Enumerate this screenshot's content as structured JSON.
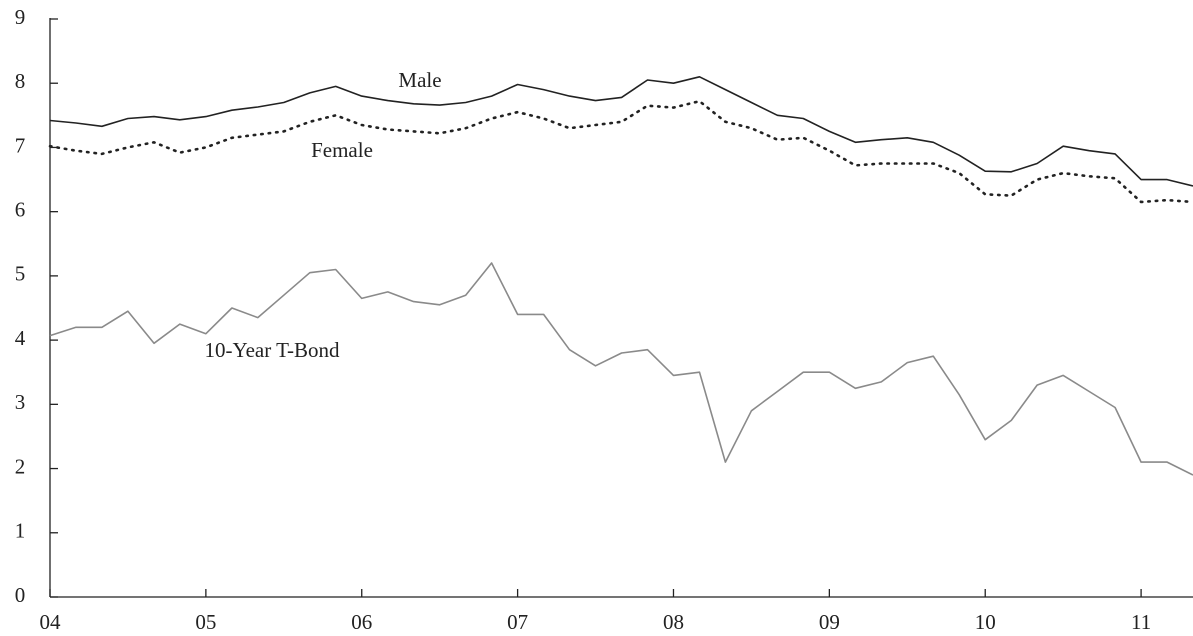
{
  "chart_data": {
    "type": "line",
    "x": [
      2004,
      2004.167,
      2004.333,
      2004.5,
      2004.667,
      2004.833,
      2005,
      2005.167,
      2005.333,
      2005.5,
      2005.667,
      2005.833,
      2006,
      2006.167,
      2006.333,
      2006.5,
      2006.667,
      2006.833,
      2007,
      2007.167,
      2007.333,
      2007.5,
      2007.667,
      2007.833,
      2008,
      2008.167,
      2008.333,
      2008.5,
      2008.667,
      2008.833,
      2009,
      2009.167,
      2009.333,
      2009.5,
      2009.667,
      2009.833,
      2010,
      2010.167,
      2010.333,
      2010.5,
      2010.667,
      2010.833,
      2011,
      2011.167,
      2011.333
    ],
    "series": [
      {
        "name": "Male",
        "color": "#222222",
        "dash": "solid",
        "values": [
          7.42,
          7.38,
          7.33,
          7.45,
          7.48,
          7.43,
          7.48,
          7.58,
          7.63,
          7.7,
          7.85,
          7.95,
          7.8,
          7.73,
          7.68,
          7.66,
          7.7,
          7.8,
          7.98,
          7.9,
          7.8,
          7.73,
          7.78,
          8.05,
          8.0,
          8.1,
          7.9,
          7.7,
          7.5,
          7.45,
          7.25,
          7.08,
          7.12,
          7.15,
          7.08,
          6.88,
          6.63,
          6.62,
          6.75,
          7.02,
          6.95,
          6.9,
          6.5,
          6.5,
          6.4
        ]
      },
      {
        "name": "Female",
        "color": "#222222",
        "dash": "dotted",
        "values": [
          7.02,
          6.95,
          6.9,
          7.0,
          7.08,
          6.92,
          7.0,
          7.15,
          7.2,
          7.25,
          7.4,
          7.5,
          7.35,
          7.28,
          7.25,
          7.22,
          7.3,
          7.45,
          7.55,
          7.45,
          7.3,
          7.35,
          7.4,
          7.65,
          7.62,
          7.72,
          7.4,
          7.3,
          7.12,
          7.15,
          6.95,
          6.72,
          6.75,
          6.75,
          6.75,
          6.6,
          6.27,
          6.25,
          6.5,
          6.6,
          6.55,
          6.52,
          6.15,
          6.18,
          6.15
        ]
      },
      {
        "name": "10-Year T-Bond",
        "color": "#8a8a8a",
        "dash": "solid",
        "values": [
          4.07,
          4.2,
          4.2,
          4.45,
          3.95,
          4.25,
          4.1,
          4.5,
          4.35,
          4.7,
          5.05,
          5.1,
          4.65,
          4.75,
          4.6,
          4.55,
          4.7,
          5.2,
          4.4,
          4.4,
          3.85,
          3.6,
          3.8,
          3.85,
          3.45,
          3.5,
          2.1,
          2.9,
          3.2,
          3.5,
          3.5,
          3.25,
          3.35,
          3.65,
          3.75,
          3.15,
          2.45,
          2.75,
          3.3,
          3.45,
          3.2,
          2.95,
          2.1,
          2.1,
          1.9
        ]
      }
    ],
    "xlim": [
      2004,
      2011.333
    ],
    "ylim": [
      0,
      9
    ],
    "xticks": [
      {
        "value": 2004,
        "label": "04"
      },
      {
        "value": 2005,
        "label": "05"
      },
      {
        "value": 2006,
        "label": "06"
      },
      {
        "value": 2007,
        "label": "07"
      },
      {
        "value": 2008,
        "label": "08"
      },
      {
        "value": 2009,
        "label": "09"
      },
      {
        "value": 2010,
        "label": "10"
      },
      {
        "value": 2011,
        "label": "11"
      }
    ],
    "yticks": [
      0,
      1,
      2,
      3,
      4,
      5,
      6,
      7,
      8,
      9
    ]
  }
}
